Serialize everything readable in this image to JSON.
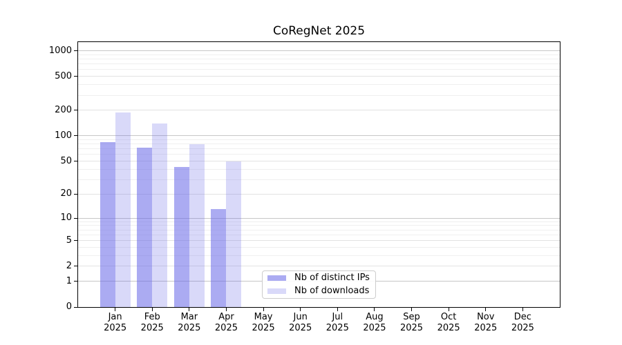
{
  "chart_data": {
    "type": "bar",
    "title": "CoRegNet 2025",
    "months": [
      "Jan",
      "Feb",
      "Mar",
      "Apr",
      "May",
      "Jun",
      "Jul",
      "Aug",
      "Sep",
      "Oct",
      "Nov",
      "Dec"
    ],
    "year": "2025",
    "series": [
      {
        "name": "Nb of distinct IPs",
        "color": "rgba(102,102,232,0.55)",
        "values": [
          85,
          72,
          43,
          13,
          0,
          0,
          0,
          0,
          0,
          0,
          0,
          0
        ]
      },
      {
        "name": "Nb of downloads",
        "color": "rgba(102,102,232,0.25)",
        "values": [
          190,
          140,
          80,
          50,
          0,
          0,
          0,
          0,
          0,
          0,
          0,
          0
        ]
      }
    ],
    "y_axis": {
      "scale": "log1p",
      "range": [
        0,
        1240
      ],
      "ticks": [
        0,
        1,
        2,
        5,
        10,
        20,
        50,
        100,
        200,
        500,
        1000
      ],
      "decade_ticks": [
        1,
        10,
        100,
        1000
      ],
      "minor_ticks": [
        3,
        4,
        6,
        7,
        8,
        9,
        30,
        40,
        60,
        70,
        80,
        90,
        300,
        400,
        600,
        700,
        800,
        900
      ]
    },
    "xlabel": "",
    "ylabel": "",
    "grid": true,
    "legend_position": "lower-center"
  },
  "colors": {
    "grid_decade": "#c6c6c6",
    "grid_labeled": "#e2e2e2",
    "grid_minor": "#efefef",
    "axis": "#000000",
    "legend_border": "#cccccc"
  }
}
